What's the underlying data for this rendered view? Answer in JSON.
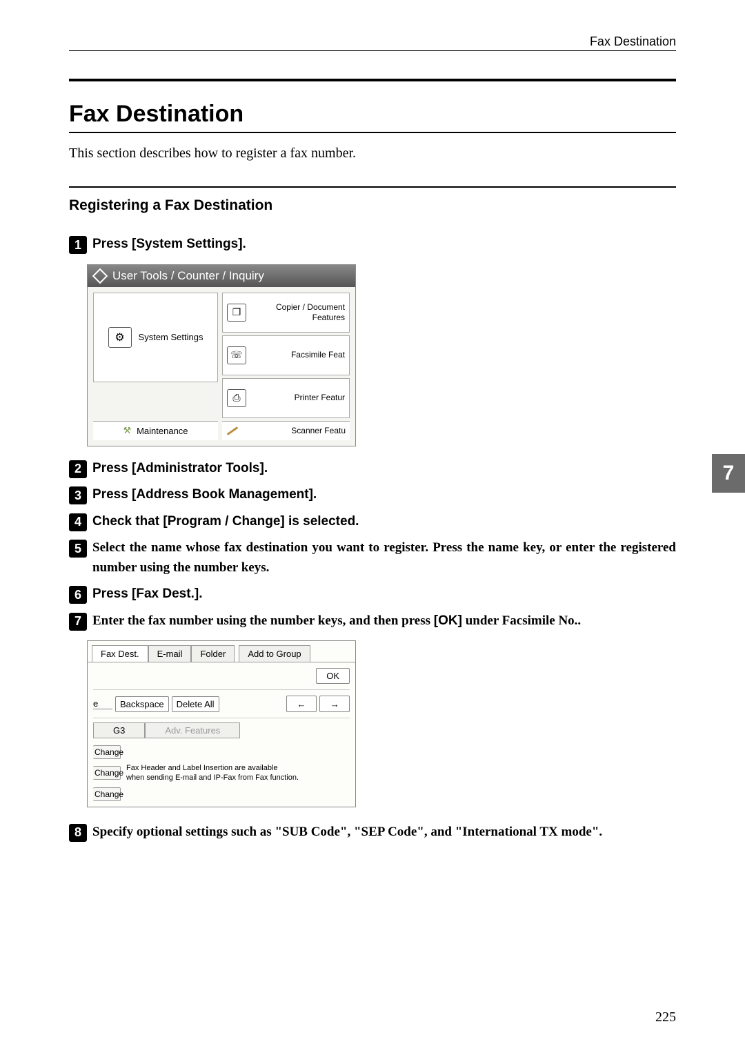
{
  "header": {
    "right_text": "Fax Destination"
  },
  "title": "Fax Destination",
  "intro": "This section describes how to register a fax number.",
  "section_heading": "Registering a Fax Destination",
  "steps": {
    "s1": {
      "num": "1",
      "prefix": "Press ",
      "bracket": "[System Settings]",
      "suffix": "."
    },
    "s2": {
      "num": "2",
      "prefix": "Press ",
      "bracket": "[Administrator Tools]",
      "suffix": "."
    },
    "s3": {
      "num": "3",
      "prefix": "Press ",
      "bracket": "[Address Book Management]",
      "suffix": "."
    },
    "s4": {
      "num": "4",
      "prefix": "Check that ",
      "bracket": "[Program / Change]",
      "suffix": " is selected."
    },
    "s5": {
      "num": "5",
      "text": "Select the name whose fax destination you want to register. Press the name key, or enter the registered number using the number keys."
    },
    "s6": {
      "num": "6",
      "prefix": "Press ",
      "bracket": "[Fax Dest.]",
      "suffix": "."
    },
    "s7": {
      "num": "7",
      "prefix": "Enter the fax number using the number keys, and then press ",
      "bracket": "[OK]",
      "suffix": " under Facsimile No.."
    },
    "s8": {
      "num": "8",
      "text": "Specify optional settings such as \"SUB Code\", \"SEP Code\", and \"International TX mode\"."
    }
  },
  "screenshot1": {
    "titlebar": "User Tools / Counter / Inquiry",
    "left_button": "System Settings",
    "right_items": [
      "Copier / Document\nFeatures",
      "Facsimile Feat",
      "Printer Featur"
    ],
    "bottom_left": "Maintenance",
    "bottom_right": "Scanner Featu"
  },
  "screenshot2": {
    "tabs": [
      "Fax Dest.",
      "E-mail",
      "Folder",
      "Add to Group"
    ],
    "ok": "OK",
    "field_char": "e",
    "backspace": "Backspace",
    "delete_all": "Delete All",
    "arrow_left": "←",
    "arrow_right": "→",
    "seg_g3": "G3",
    "seg_adv": "Adv. Features",
    "change": "Change",
    "note": "Fax Header and Label Insertion are available\nwhen sending E-mail and IP-Fax from Fax function."
  },
  "chapter_tab": "7",
  "page_number": "225"
}
